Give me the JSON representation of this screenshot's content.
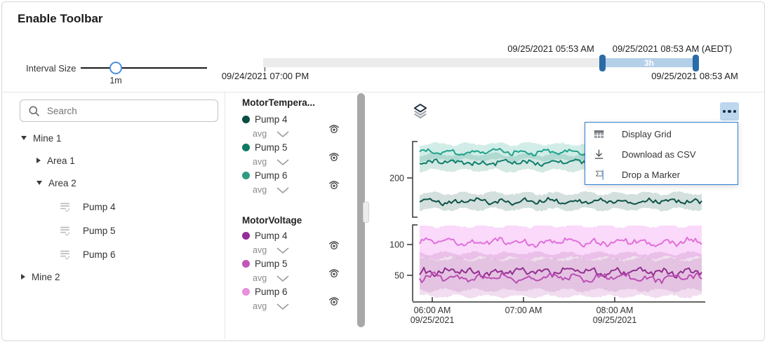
{
  "window": {
    "title": "Enable Toolbar"
  },
  "interval_slider": {
    "label": "Interval Size",
    "value": "1m"
  },
  "time_slider": {
    "track_start_label": "09/24/2021 07:00 PM",
    "track_end_label": "09/25/2021 08:53 AM",
    "selection_start_label": "09/25/2021 05:53 AM",
    "selection_end_label": "09/25/2021 08:53 AM (AEDT)",
    "selection_duration": "3h"
  },
  "tree": {
    "search_placeholder": "Search",
    "items": [
      {
        "label": "Mine 1"
      },
      {
        "label": "Area 1"
      },
      {
        "label": "Area 2"
      },
      {
        "label": "Pump 4"
      },
      {
        "label": "Pump 5"
      },
      {
        "label": "Pump 6"
      },
      {
        "label": "Mine 2"
      }
    ]
  },
  "legend": {
    "groups": [
      {
        "title": "MotorTempera...",
        "items": [
          {
            "label": "Pump 4",
            "agg": "avg",
            "color": "#0b4d43"
          },
          {
            "label": "Pump 5",
            "agg": "avg",
            "color": "#107a64"
          },
          {
            "label": "Pump 6",
            "agg": "avg",
            "color": "#2d9c82"
          }
        ]
      },
      {
        "title": "MotorVoltage",
        "items": [
          {
            "label": "Pump 4",
            "agg": "avg",
            "color": "#952d96"
          },
          {
            "label": "Pump 5",
            "agg": "avg",
            "color": "#c257b8"
          },
          {
            "label": "Pump 6",
            "agg": "avg",
            "color": "#e98fdc"
          }
        ]
      }
    ]
  },
  "context_menu": {
    "items": [
      {
        "label": "Display Grid"
      },
      {
        "label": "Download as CSV"
      },
      {
        "label": "Drop a Marker"
      }
    ]
  },
  "chart_data": {
    "type": "line",
    "x_axis": {
      "range": [
        "09/25/2021 05:53 AM",
        "09/25/2021 08:53 AM"
      ],
      "ticks": [
        {
          "time": "06:00 AM",
          "date": "09/25/2021"
        },
        {
          "time": "07:00 AM",
          "date": ""
        },
        {
          "time": "08:00 AM",
          "date": "09/25/2021"
        }
      ]
    },
    "segments": [
      {
        "group": "MotorTempera...",
        "y_ticks": [
          200
        ],
        "y_range": [
          140,
          258
        ],
        "series": [
          {
            "name": "Pump 6",
            "agg": "avg",
            "mean": 242,
            "noise_amp": 4.5,
            "band": 13,
            "color": "#1fa38a",
            "band_color": "rgba(31,163,138,0.20)"
          },
          {
            "name": "Pump 5",
            "agg": "avg",
            "mean": 225,
            "noise_amp": 4.5,
            "band": 13,
            "color": "#0e7f6a",
            "band_color": "rgba(14,127,106,0.18)"
          },
          {
            "name": "Pump 4",
            "agg": "avg",
            "mean": 162,
            "noise_amp": 4.5,
            "band": 13,
            "color": "#0d5247",
            "band_color": "rgba(13,82,71,0.18)"
          }
        ]
      },
      {
        "group": "MotorVoltage",
        "y_ticks": [
          100,
          50
        ],
        "y_range": [
          0,
          136
        ],
        "series": [
          {
            "name": "Pump 6",
            "agg": "avg",
            "mean": 104,
            "noise_amp": 6,
            "band": 26,
            "color": "#e070da",
            "band_color": "rgba(238,130,238,0.30)"
          },
          {
            "name": "Pump 4",
            "agg": "avg",
            "mean": 56,
            "noise_amp": 6.5,
            "band": 30,
            "color": "#93308f",
            "band_color": "rgba(147,48,143,0.15)"
          },
          {
            "name": "Pump 5",
            "agg": "avg",
            "mean": 46,
            "noise_amp": 6.5,
            "band": 30,
            "color": "#bb4fb4",
            "band_color": "rgba(187,79,180,0.20)"
          }
        ]
      }
    ]
  }
}
